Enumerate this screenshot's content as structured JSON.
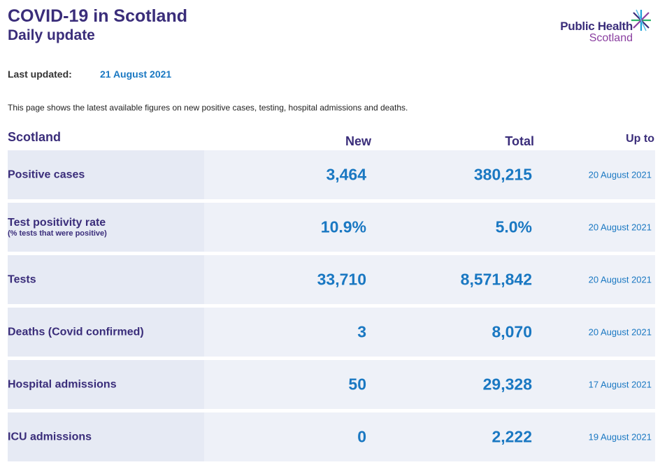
{
  "header": {
    "title": "COVID-19 in Scotland",
    "subtitle": "Daily update"
  },
  "logo": {
    "line1": "Public Health",
    "line2": "Scotland",
    "icon": "phs-star-logo-icon"
  },
  "updated": {
    "label": "Last updated:",
    "value": "21 August 2021"
  },
  "intro": "This page shows the latest available figures on new positive cases, testing, hospital admissions and deaths.",
  "table": {
    "headers": {
      "region": "Scotland",
      "new": "New",
      "total": "Total",
      "up_to": "Up to"
    },
    "rows": [
      {
        "label": "Positive cases",
        "sublabel": "",
        "new": "3,464",
        "total": "380,215",
        "up_to": "20 August 2021"
      },
      {
        "label": "Test positivity rate",
        "sublabel": "(% tests that were positive)",
        "new": "10.9%",
        "total": "5.0%",
        "up_to": "20 August 2021"
      },
      {
        "label": "Tests",
        "sublabel": "",
        "new": "33,710",
        "total": "8,571,842",
        "up_to": "20 August 2021"
      },
      {
        "label": "Deaths (Covid confirmed)",
        "sublabel": "",
        "new": "3",
        "total": "8,070",
        "up_to": "20 August 2021"
      },
      {
        "label": "Hospital admissions",
        "sublabel": "",
        "new": "50",
        "total": "29,328",
        "up_to": "17 August 2021"
      },
      {
        "label": "ICU admissions",
        "sublabel": "",
        "new": "0",
        "total": "2,222",
        "up_to": "19 August 2021"
      }
    ]
  },
  "colors": {
    "heading": "#3a2d7a",
    "value": "#1a78c2",
    "row_bg": "#eef1f8",
    "label_bg": "#e6eaf4"
  }
}
